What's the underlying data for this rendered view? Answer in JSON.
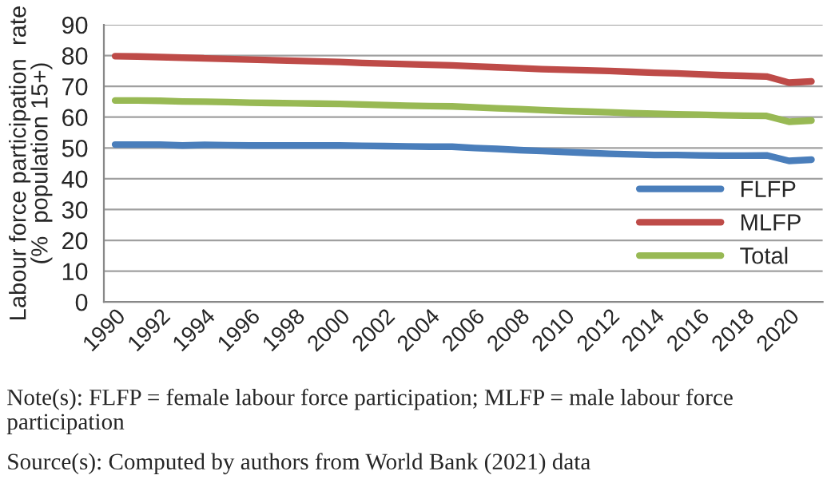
{
  "chart_data": {
    "type": "line",
    "ylabel": "Labour force participation  rate\n(%  population 15+)",
    "categories": [
      "1990",
      null,
      "1992",
      null,
      "1994",
      null,
      "1996",
      null,
      "1998",
      null,
      "2000",
      null,
      "2002",
      null,
      "2004",
      null,
      "2006",
      null,
      "2008",
      null,
      "2010",
      null,
      "2012",
      null,
      "2014",
      null,
      "2016",
      null,
      "2018",
      null,
      "2020",
      null
    ],
    "series": [
      {
        "name": "FLFP",
        "color": "#4a7ebb",
        "values": [
          51.1,
          51.1,
          51.1,
          50.8,
          51.0,
          50.9,
          50.8,
          50.8,
          50.8,
          50.8,
          50.8,
          50.7,
          50.6,
          50.5,
          50.4,
          50.4,
          50.0,
          49.7,
          49.3,
          49.0,
          48.7,
          48.4,
          48.1,
          47.9,
          47.7,
          47.7,
          47.6,
          47.5,
          47.5,
          47.6,
          45.8,
          46.2
        ]
      },
      {
        "name": "MLFP",
        "color": "#be4b48",
        "values": [
          79.8,
          79.7,
          79.5,
          79.3,
          79.1,
          78.9,
          78.7,
          78.5,
          78.3,
          78.1,
          77.9,
          77.6,
          77.4,
          77.2,
          77.0,
          76.8,
          76.5,
          76.2,
          75.9,
          75.6,
          75.4,
          75.2,
          75.0,
          74.7,
          74.4,
          74.2,
          73.9,
          73.6,
          73.4,
          73.2,
          71.2,
          71.6
        ]
      },
      {
        "name": "Total",
        "color": "#98b954",
        "values": [
          65.4,
          65.4,
          65.3,
          65.1,
          65.0,
          64.9,
          64.7,
          64.6,
          64.5,
          64.4,
          64.3,
          64.1,
          63.9,
          63.7,
          63.6,
          63.5,
          63.2,
          62.9,
          62.6,
          62.3,
          62.0,
          61.8,
          61.6,
          61.3,
          61.1,
          60.9,
          60.8,
          60.6,
          60.5,
          60.4,
          58.5,
          58.9
        ]
      }
    ],
    "ylim": [
      0,
      90
    ],
    "yticks": [
      0,
      10,
      20,
      30,
      40,
      50,
      60,
      70,
      80,
      90
    ],
    "grid": "y",
    "legend": "right",
    "marker": "none",
    "line_style": "solid",
    "annotations": [
      "Note(s): FLFP = female labour force participation; MLFP = male labour force participation",
      "Source(s): Computed by authors from World Bank (2021) data"
    ]
  }
}
